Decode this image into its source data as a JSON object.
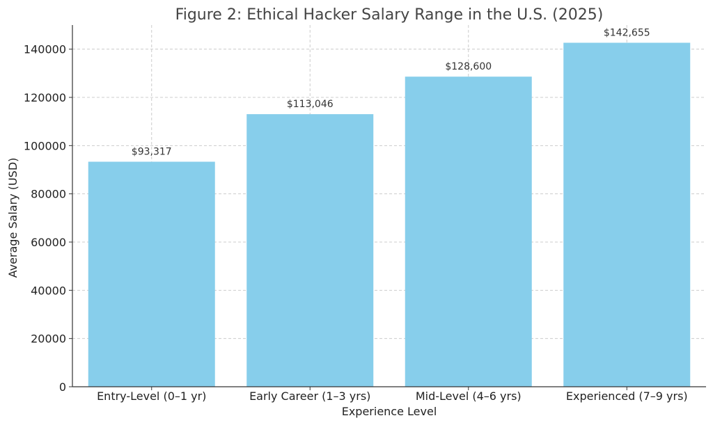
{
  "chart_data": {
    "type": "bar",
    "title": "Figure 2: Ethical Hacker Salary Range in the U.S. (2025)",
    "xlabel": "Experience Level",
    "ylabel": "Average Salary (USD)",
    "categories": [
      "Entry-Level (0–1 yr)",
      "Early Career (1–3 yrs)",
      "Mid-Level (4–6 yrs)",
      "Experienced (7–9 yrs)"
    ],
    "values": [
      93317,
      113046,
      128600,
      142655
    ],
    "data_labels": [
      "$93,317",
      "$113,046",
      "$128,600",
      "$142,655"
    ],
    "ylim": [
      0,
      150000
    ],
    "yticks": [
      0,
      20000,
      40000,
      60000,
      80000,
      100000,
      120000,
      140000
    ],
    "ytick_labels": [
      "0",
      "20000",
      "40000",
      "60000",
      "80000",
      "100000",
      "120000",
      "140000"
    ],
    "grid": true,
    "bar_color": "#87CEEB"
  }
}
